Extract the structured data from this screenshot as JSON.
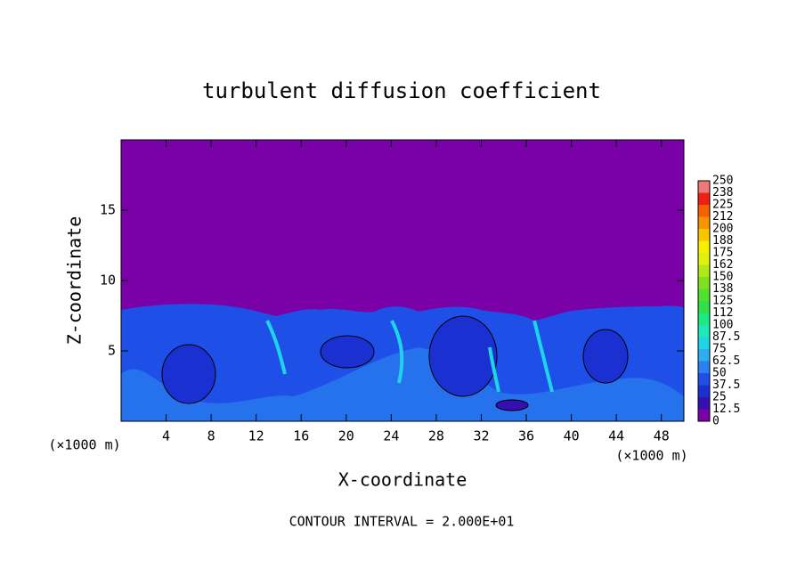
{
  "chart_data": {
    "type": "contour",
    "title": "turbulent diffusion coefficient",
    "xlabel": "X-coordinate",
    "ylabel": "Z-coordinate",
    "x_unit": "(×1000 m)",
    "annotation": "CONTOUR INTERVAL = 2.000E+01",
    "xlim": [
      0,
      50
    ],
    "ylim": [
      0,
      20
    ],
    "xticks": [
      4,
      8,
      12,
      16,
      20,
      24,
      28,
      32,
      36,
      40,
      44,
      48
    ],
    "yticks": [
      5,
      10,
      15
    ],
    "colorbar": {
      "levels": [
        0,
        12.5,
        25,
        37.5,
        50,
        62.5,
        75,
        87.5,
        100,
        112,
        125,
        138,
        150,
        162,
        175,
        188,
        200,
        212,
        225,
        238,
        250
      ],
      "colors": [
        "#7a00a8",
        "#3410b0",
        "#1a30d0",
        "#1e50e8",
        "#2a80f0",
        "#30acf0",
        "#20d4e8",
        "#20e8b8",
        "#20e880",
        "#30e048",
        "#50e030",
        "#80e020",
        "#b0e818",
        "#e0f010",
        "#f8f000",
        "#f8c400",
        "#f89400",
        "#f86000",
        "#f02010",
        "#f07878"
      ]
    }
  }
}
